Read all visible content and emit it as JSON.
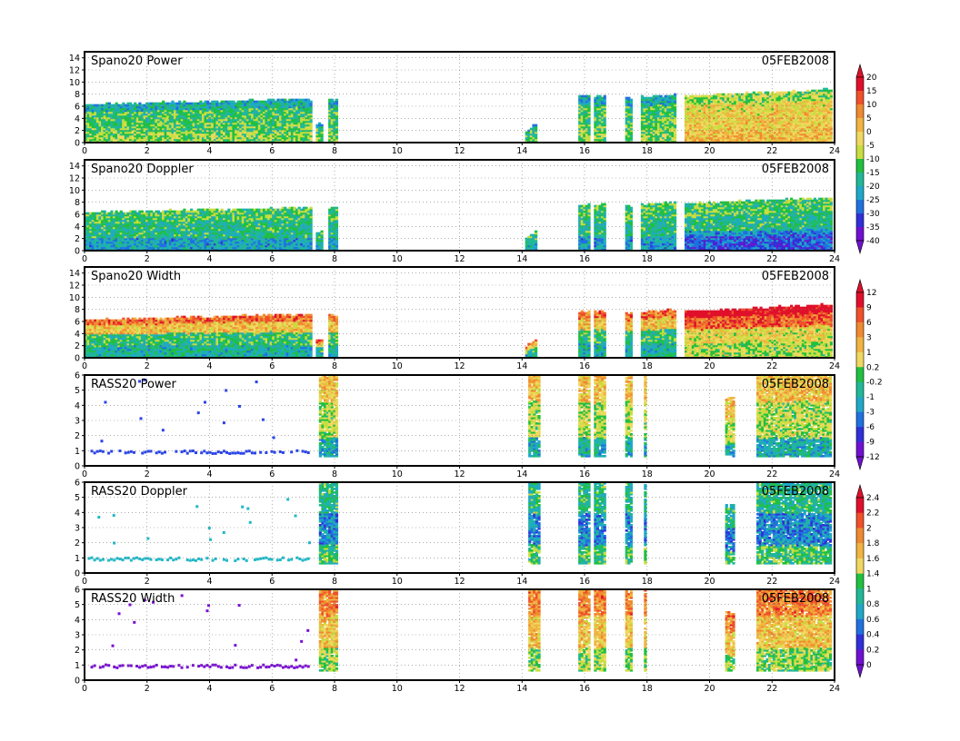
{
  "chart_data": [
    {
      "type": "heatmap",
      "title": "Spano20  Power",
      "date": "05FEB2008",
      "xlim": [
        0,
        24
      ],
      "ylim": [
        0,
        15
      ],
      "xticks": [
        "0",
        "2",
        "4",
        "6",
        "8",
        "10",
        "12",
        "14",
        "16",
        "18",
        "20",
        "22",
        "24"
      ],
      "yticks": [
        "0",
        "2",
        "4",
        "6",
        "8",
        "10",
        "12",
        "14"
      ],
      "colorbar": "cb1",
      "data_extents": [
        {
          "x": [
            0,
            7.3
          ],
          "top": [
            6.2,
            7.1
          ]
        },
        {
          "x": [
            7.4,
            7.6
          ],
          "top": [
            3.0,
            3.0
          ]
        },
        {
          "x": [
            7.8,
            8.1
          ],
          "top": [
            7.0,
            7.0
          ]
        },
        {
          "x": [
            14.1,
            14.5
          ],
          "top": [
            1.8,
            3.0
          ]
        },
        {
          "x": [
            15.8,
            16.2
          ],
          "top": [
            7.5,
            7.5
          ]
        },
        {
          "x": [
            16.3,
            16.7
          ],
          "top": [
            7.5,
            7.5
          ]
        },
        {
          "x": [
            17.3,
            17.5
          ],
          "top": [
            7.2,
            7.2
          ]
        },
        {
          "x": [
            17.8,
            18.9
          ],
          "top": [
            7.5,
            7.8
          ]
        },
        {
          "x": [
            19.2,
            23.9
          ],
          "top": [
            7.6,
            8.7
          ]
        }
      ]
    },
    {
      "type": "heatmap",
      "title": "Spano20  Doppler",
      "date": "05FEB2008",
      "xlim": [
        0,
        24
      ],
      "ylim": [
        0,
        15
      ],
      "xticks": [
        "0",
        "2",
        "4",
        "6",
        "8",
        "10",
        "12",
        "14",
        "16",
        "18",
        "20",
        "22",
        "24"
      ],
      "yticks": [
        "0",
        "2",
        "4",
        "6",
        "8",
        "10",
        "12",
        "14"
      ],
      "colorbar": "cb1",
      "data_extents": [
        {
          "x": [
            0,
            7.3
          ],
          "top": [
            6.2,
            7.1
          ]
        },
        {
          "x": [
            7.4,
            7.6
          ],
          "top": [
            3.0,
            3.0
          ]
        },
        {
          "x": [
            7.8,
            8.1
          ],
          "top": [
            7.0,
            7.0
          ]
        },
        {
          "x": [
            14.1,
            14.5
          ],
          "top": [
            2.0,
            3.0
          ]
        },
        {
          "x": [
            15.8,
            16.2
          ],
          "top": [
            7.5,
            7.5
          ]
        },
        {
          "x": [
            16.3,
            16.7
          ],
          "top": [
            7.5,
            7.5
          ]
        },
        {
          "x": [
            17.3,
            17.5
          ],
          "top": [
            7.2,
            7.2
          ]
        },
        {
          "x": [
            17.8,
            18.9
          ],
          "top": [
            7.5,
            7.8
          ]
        },
        {
          "x": [
            19.2,
            23.9
          ],
          "top": [
            7.6,
            8.7
          ]
        }
      ]
    },
    {
      "type": "heatmap",
      "title": "Spano20  Width",
      "date": "05FEB2008",
      "xlim": [
        0,
        24
      ],
      "ylim": [
        0,
        15
      ],
      "xticks": [
        "0",
        "2",
        "4",
        "6",
        "8",
        "10",
        "12",
        "14",
        "16",
        "18",
        "20",
        "22",
        "24"
      ],
      "yticks": [
        "0",
        "2",
        "4",
        "6",
        "8",
        "10",
        "12",
        "14"
      ],
      "colorbar": "cb2",
      "data_extents": [
        {
          "x": [
            0,
            7.3
          ],
          "top": [
            6.2,
            7.1
          ]
        },
        {
          "x": [
            7.4,
            7.6
          ],
          "top": [
            3.0,
            3.0
          ]
        },
        {
          "x": [
            7.8,
            8.1
          ],
          "top": [
            7.0,
            7.0
          ]
        },
        {
          "x": [
            14.1,
            14.5
          ],
          "top": [
            1.8,
            3.0
          ]
        },
        {
          "x": [
            15.8,
            16.2
          ],
          "top": [
            7.5,
            7.5
          ]
        },
        {
          "x": [
            16.3,
            16.7
          ],
          "top": [
            7.5,
            7.5
          ]
        },
        {
          "x": [
            17.3,
            17.5
          ],
          "top": [
            7.2,
            7.2
          ]
        },
        {
          "x": [
            17.8,
            18.9
          ],
          "top": [
            7.5,
            7.8
          ]
        },
        {
          "x": [
            19.2,
            23.9
          ],
          "top": [
            7.6,
            8.7
          ]
        }
      ]
    },
    {
      "type": "heatmap",
      "title": "RASS20  Power",
      "date": "05FEB2008",
      "xlim": [
        0,
        24
      ],
      "ylim": [
        0,
        6
      ],
      "xticks": [
        "0",
        "2",
        "4",
        "6",
        "8",
        "10",
        "12",
        "14",
        "16",
        "18",
        "20",
        "22",
        "24"
      ],
      "yticks": [
        "0",
        "1",
        "2",
        "3",
        "4",
        "5",
        "6"
      ],
      "colorbar": "cb2",
      "data_extents": [
        {
          "x": [
            7.5,
            8.1
          ],
          "top": [
            6.0,
            6.0
          ]
        },
        {
          "x": [
            14.2,
            14.6
          ],
          "top": [
            6.0,
            6.0
          ]
        },
        {
          "x": [
            15.8,
            16.2
          ],
          "top": [
            6.0,
            6.0
          ]
        },
        {
          "x": [
            16.3,
            16.7
          ],
          "top": [
            6.0,
            6.0
          ]
        },
        {
          "x": [
            17.3,
            17.5
          ],
          "top": [
            6.0,
            6.0
          ]
        },
        {
          "x": [
            17.9,
            18.0
          ],
          "top": [
            6.0,
            6.0
          ]
        },
        {
          "x": [
            20.5,
            20.8
          ],
          "top": [
            4.5,
            4.5
          ]
        },
        {
          "x": [
            21.5,
            23.9
          ],
          "top": [
            6.0,
            6.0
          ]
        }
      ]
    },
    {
      "type": "heatmap",
      "title": "RASS20  Doppler",
      "date": "05FEB2008",
      "xlim": [
        0,
        24
      ],
      "ylim": [
        0,
        6
      ],
      "xticks": [
        "0",
        "2",
        "4",
        "6",
        "8",
        "10",
        "12",
        "14",
        "16",
        "18",
        "20",
        "22",
        "24"
      ],
      "yticks": [
        "0",
        "1",
        "2",
        "3",
        "4",
        "5",
        "6"
      ],
      "colorbar": "cb3",
      "data_extents": [
        {
          "x": [
            7.5,
            8.1
          ],
          "top": [
            6.0,
            6.0
          ]
        },
        {
          "x": [
            14.2,
            14.6
          ],
          "top": [
            6.0,
            6.0
          ]
        },
        {
          "x": [
            15.8,
            16.2
          ],
          "top": [
            6.0,
            6.0
          ]
        },
        {
          "x": [
            16.3,
            16.7
          ],
          "top": [
            6.0,
            6.0
          ]
        },
        {
          "x": [
            17.3,
            17.5
          ],
          "top": [
            6.0,
            6.0
          ]
        },
        {
          "x": [
            17.9,
            18.0
          ],
          "top": [
            6.0,
            6.0
          ]
        },
        {
          "x": [
            20.5,
            20.8
          ],
          "top": [
            4.5,
            4.5
          ]
        },
        {
          "x": [
            21.5,
            23.9
          ],
          "top": [
            6.0,
            6.0
          ]
        }
      ]
    },
    {
      "type": "heatmap",
      "title": "RASS20  Width",
      "date": "05FEB2008",
      "xlim": [
        0,
        24
      ],
      "ylim": [
        0,
        6
      ],
      "xticks": [
        "0",
        "2",
        "4",
        "6",
        "8",
        "10",
        "12",
        "14",
        "16",
        "18",
        "20",
        "22",
        "24"
      ],
      "yticks": [
        "0",
        "1",
        "2",
        "3",
        "4",
        "5",
        "6"
      ],
      "colorbar": "cb3",
      "data_extents": [
        {
          "x": [
            7.5,
            8.1
          ],
          "top": [
            6.0,
            6.0
          ]
        },
        {
          "x": [
            14.2,
            14.6
          ],
          "top": [
            6.0,
            6.0
          ]
        },
        {
          "x": [
            15.8,
            16.2
          ],
          "top": [
            6.0,
            6.0
          ]
        },
        {
          "x": [
            16.3,
            16.7
          ],
          "top": [
            6.0,
            6.0
          ]
        },
        {
          "x": [
            17.3,
            17.5
          ],
          "top": [
            6.0,
            6.0
          ]
        },
        {
          "x": [
            17.9,
            18.0
          ],
          "top": [
            6.0,
            6.0
          ]
        },
        {
          "x": [
            20.5,
            20.8
          ],
          "top": [
            4.5,
            4.5
          ]
        },
        {
          "x": [
            21.5,
            23.9
          ],
          "top": [
            6.0,
            6.0
          ]
        }
      ]
    }
  ],
  "colorbars": {
    "cb1": {
      "labels": [
        "20",
        "15",
        "10",
        "5",
        "0",
        "-5",
        "-10",
        "-15",
        "-20",
        "-25",
        "-30",
        "-35",
        "-40"
      ]
    },
    "cb2": {
      "labels": [
        "12",
        "9",
        "6",
        "3",
        "1",
        "0.2",
        "-0.2",
        "-1",
        "-3",
        "-6",
        "-9",
        "-12"
      ]
    },
    "cb3": {
      "labels": [
        "2.4",
        "2.2",
        "2",
        "1.8",
        "1.6",
        "1.4",
        "1",
        "0.8",
        "0.6",
        "0.4",
        "0.2",
        "0"
      ]
    }
  },
  "palette": [
    "#e0102a",
    "#f0502a",
    "#f08a30",
    "#f0b440",
    "#f0d860",
    "#c8de40",
    "#20c040",
    "#20b898",
    "#20a8c8",
    "#2070e0",
    "#3030d8",
    "#7010d0"
  ],
  "scatter_series": [
    {
      "panel": 3,
      "band_y": [
        0.9,
        1.1
      ],
      "x": [
        0.1,
        7.2
      ],
      "color": "#2a44e8"
    },
    {
      "panel": 4,
      "band_y": [
        0.9,
        1.1
      ],
      "x": [
        0.1,
        7.2
      ],
      "color": "#20b8c8"
    },
    {
      "panel": 5,
      "band_y": [
        0.9,
        1.1
      ],
      "x": [
        0.1,
        7.2
      ],
      "color": "#7a10d0"
    }
  ]
}
